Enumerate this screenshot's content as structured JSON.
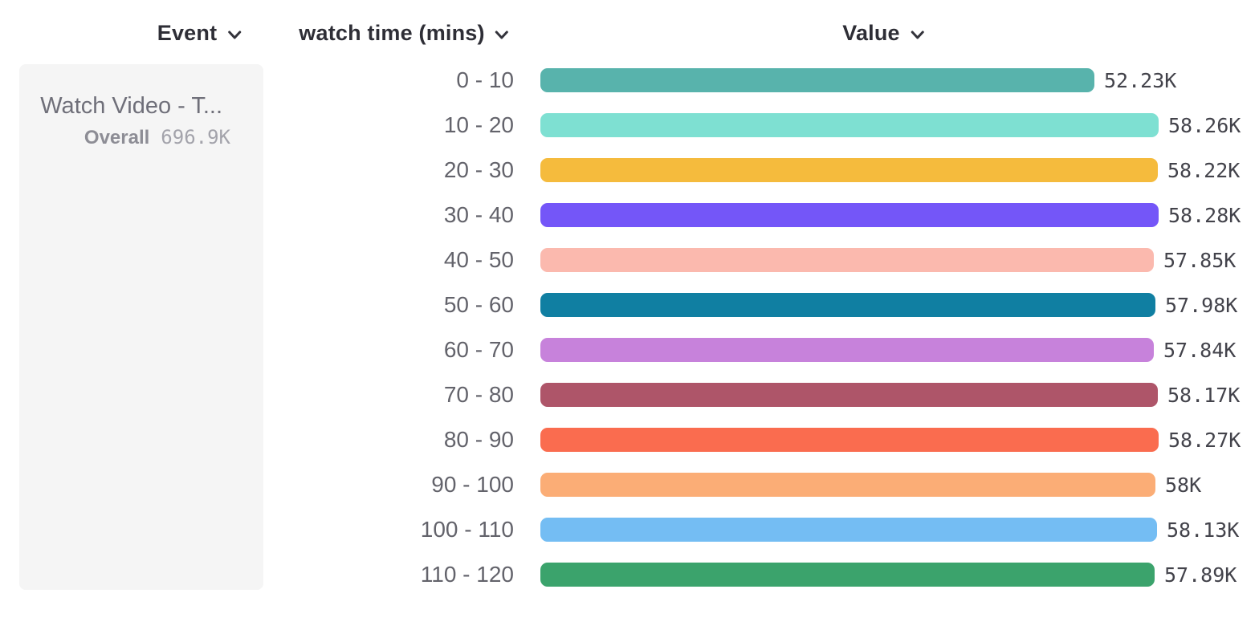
{
  "header": {
    "event_column_label": "Event",
    "breakdown_column_label": "watch time (mins)",
    "value_column_label": "Value"
  },
  "event_panel": {
    "title": "Watch Video - T...",
    "overall_label": "Overall",
    "overall_value": "696.9K"
  },
  "chart_data": {
    "type": "bar",
    "orientation": "horizontal",
    "title": "",
    "xlabel": "Value",
    "ylabel": "watch time (mins)",
    "xlim": [
      0,
      58.28
    ],
    "unit": "K",
    "grid": false,
    "legend": "none",
    "categories": [
      "0 - 10",
      "10 - 20",
      "20 - 30",
      "30 - 40",
      "40 - 50",
      "50 - 60",
      "60 - 70",
      "70 - 80",
      "80 - 90",
      "90 - 100",
      "100 - 110",
      "110 - 120"
    ],
    "values": [
      52.23,
      58.26,
      58.22,
      58.28,
      57.85,
      57.98,
      57.84,
      58.17,
      58.27,
      58.0,
      58.13,
      57.89
    ],
    "display_values": [
      "52.23K",
      "58.26K",
      "58.22K",
      "58.28K",
      "57.85K",
      "57.98K",
      "57.84K",
      "58.17K",
      "58.27K",
      "58K",
      "58.13K",
      "57.89K"
    ],
    "colors": [
      "#58B3AC",
      "#7EE0D2",
      "#F5BB3D",
      "#7456F8",
      "#FBB9AE",
      "#107FA2",
      "#C782DB",
      "#AE5569",
      "#FA6C4F",
      "#FBAD76",
      "#74BDF3",
      "#3BA36C"
    ]
  }
}
